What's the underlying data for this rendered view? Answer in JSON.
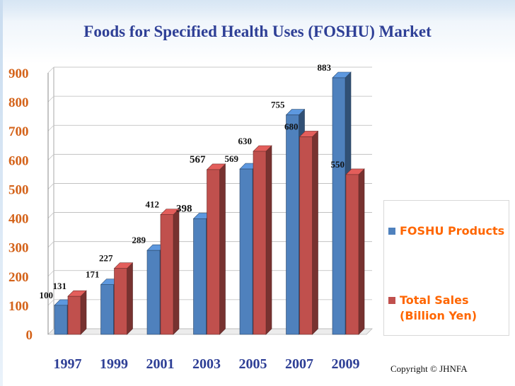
{
  "title": "Foods for Specified Health Uses (FOSHU) Market",
  "copyright": "Copyright © JHNFA",
  "colors": {
    "title": "#2e3f96",
    "foshu": "#4f81bd",
    "sales": "#c0504d",
    "legend_text": "#ff6600"
  },
  "chart_data": {
    "type": "bar",
    "title": "Foods for Specified Health Uses (FOSHU) Market",
    "categories": [
      "1997",
      "1999",
      "2001",
      "2003",
      "2005",
      "2007",
      "2009"
    ],
    "series": [
      {
        "name": "FOSHU Products",
        "values": [
          100,
          171,
          289,
          398,
          569,
          755,
          883
        ]
      },
      {
        "name": "Total Sales\n(Billion Yen)",
        "values": [
          131,
          227,
          412,
          567,
          630,
          680,
          550
        ]
      }
    ],
    "yticks": [
      "0",
      "100",
      "200",
      "300",
      "400",
      "500",
      "600",
      "700",
      "800",
      "900"
    ],
    "ylim": [
      0,
      900
    ],
    "grid": true,
    "legend_position": "right",
    "style": "3d-bars"
  }
}
